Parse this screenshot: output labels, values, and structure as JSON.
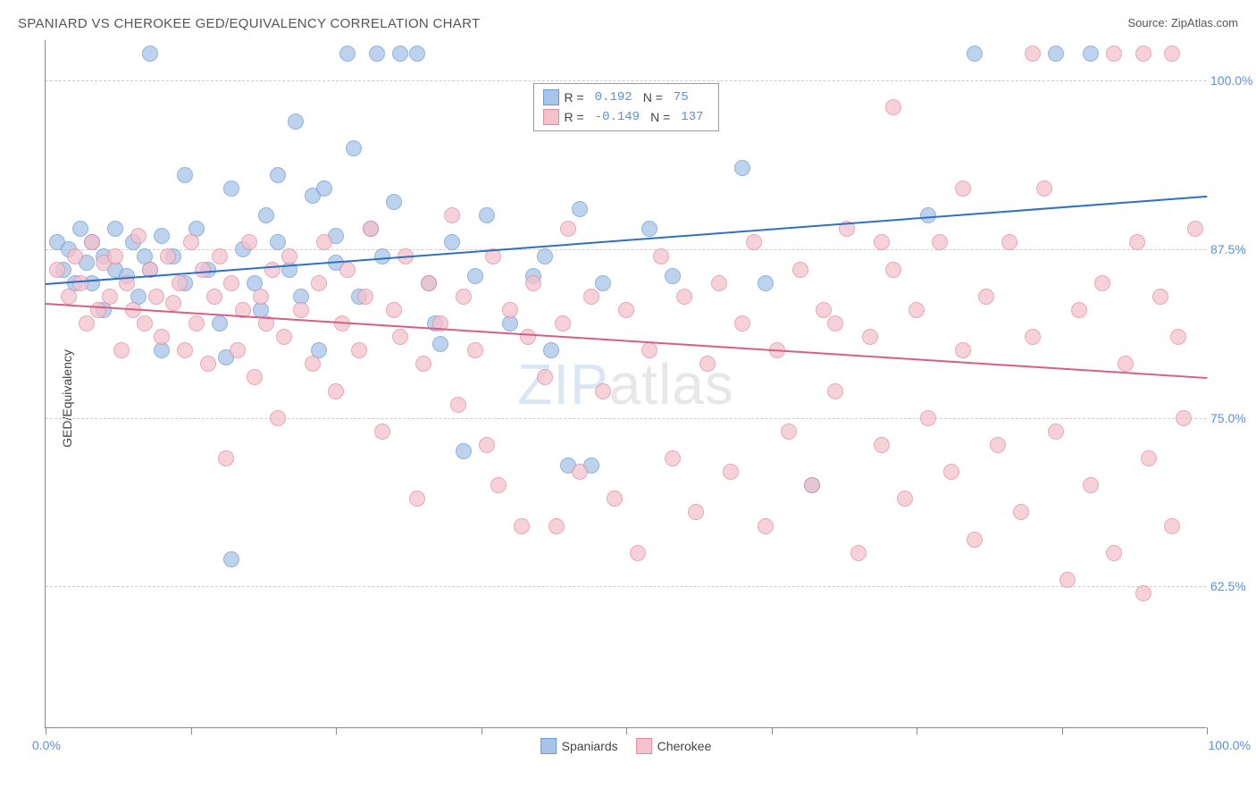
{
  "title": "SPANIARD VS CHEROKEE GED/EQUIVALENCY CORRELATION CHART",
  "source": "Source: ZipAtlas.com",
  "yaxis_label": "GED/Equivalency",
  "watermark_part1": "ZIP",
  "watermark_part2": "atlas",
  "xaxis": {
    "min": 0,
    "max": 100,
    "label_min": "0.0%",
    "label_max": "100.0%",
    "ticks": [
      0,
      12.5,
      25,
      37.5,
      50,
      62.5,
      75,
      87.5,
      100
    ]
  },
  "yaxis": {
    "min": 52,
    "max": 103,
    "gridlines": [
      62.5,
      75.0,
      87.5,
      100.0
    ],
    "labels": [
      "62.5%",
      "75.0%",
      "87.5%",
      "100.0%"
    ]
  },
  "series": [
    {
      "name": "Spaniards",
      "color_fill": "#a8c5e8",
      "color_stroke": "#6a9bd8",
      "line_color": "#2f6fc4",
      "r_value": "0.192",
      "n_value": "75",
      "trend": {
        "y_at_x0": 85.0,
        "y_at_x100": 91.5
      },
      "marker_radius": 9,
      "points": [
        [
          1,
          88
        ],
        [
          1.5,
          86
        ],
        [
          2,
          87.5
        ],
        [
          2.5,
          85
        ],
        [
          3,
          89
        ],
        [
          3.5,
          86.5
        ],
        [
          4,
          88
        ],
        [
          4,
          85
        ],
        [
          5,
          87
        ],
        [
          5,
          83
        ],
        [
          6,
          86
        ],
        [
          6,
          89
        ],
        [
          7,
          85.5
        ],
        [
          7.5,
          88
        ],
        [
          8,
          84
        ],
        [
          8.5,
          87
        ],
        [
          9,
          86
        ],
        [
          9,
          102
        ],
        [
          10,
          88.5
        ],
        [
          10,
          80
        ],
        [
          11,
          87
        ],
        [
          12,
          85
        ],
        [
          12,
          93
        ],
        [
          13,
          89
        ],
        [
          14,
          86
        ],
        [
          15,
          82
        ],
        [
          15.5,
          79.5
        ],
        [
          16,
          92
        ],
        [
          16,
          64.5
        ],
        [
          17,
          87.5
        ],
        [
          18,
          85
        ],
        [
          18.5,
          83
        ],
        [
          19,
          90
        ],
        [
          20,
          88
        ],
        [
          20,
          93
        ],
        [
          21,
          86
        ],
        [
          21.5,
          97
        ],
        [
          22,
          84
        ],
        [
          23,
          91.5
        ],
        [
          23.5,
          80
        ],
        [
          24,
          92
        ],
        [
          25,
          86.5
        ],
        [
          25,
          88.5
        ],
        [
          26,
          102
        ],
        [
          26.5,
          95
        ],
        [
          27,
          84
        ],
        [
          28,
          89
        ],
        [
          28.5,
          102
        ],
        [
          29,
          87
        ],
        [
          30,
          91
        ],
        [
          30.5,
          102
        ],
        [
          32,
          102
        ],
        [
          33,
          85
        ],
        [
          33.5,
          82
        ],
        [
          34,
          80.5
        ],
        [
          35,
          88
        ],
        [
          36,
          72.5
        ],
        [
          37,
          85.5
        ],
        [
          38,
          90
        ],
        [
          40,
          82
        ],
        [
          42,
          85.5
        ],
        [
          43,
          87
        ],
        [
          43.5,
          80
        ],
        [
          45,
          71.5
        ],
        [
          46,
          90.5
        ],
        [
          47,
          71.5
        ],
        [
          48,
          85
        ],
        [
          52,
          89
        ],
        [
          54,
          85.5
        ],
        [
          60,
          93.5
        ],
        [
          62,
          85
        ],
        [
          66,
          70
        ],
        [
          76,
          90
        ],
        [
          80,
          102
        ],
        [
          87,
          102
        ],
        [
          90,
          102
        ]
      ]
    },
    {
      "name": "Cherokee",
      "color_fill": "#f4c2cd",
      "color_stroke": "#e38ba0",
      "line_color": "#d65f82",
      "r_value": "-0.149",
      "n_value": "137",
      "trend": {
        "y_at_x0": 83.5,
        "y_at_x100": 78.0
      },
      "marker_radius": 9,
      "points": [
        [
          1,
          86
        ],
        [
          2,
          84
        ],
        [
          2.5,
          87
        ],
        [
          3,
          85
        ],
        [
          3.5,
          82
        ],
        [
          4,
          88
        ],
        [
          4.5,
          83
        ],
        [
          5,
          86.5
        ],
        [
          5.5,
          84
        ],
        [
          6,
          87
        ],
        [
          6.5,
          80
        ],
        [
          7,
          85
        ],
        [
          7.5,
          83
        ],
        [
          8,
          88.5
        ],
        [
          8.5,
          82
        ],
        [
          9,
          86
        ],
        [
          9.5,
          84
        ],
        [
          10,
          81
        ],
        [
          10.5,
          87
        ],
        [
          11,
          83.5
        ],
        [
          11.5,
          85
        ],
        [
          12,
          80
        ],
        [
          12.5,
          88
        ],
        [
          13,
          82
        ],
        [
          13.5,
          86
        ],
        [
          14,
          79
        ],
        [
          14.5,
          84
        ],
        [
          15,
          87
        ],
        [
          15.5,
          72
        ],
        [
          16,
          85
        ],
        [
          16.5,
          80
        ],
        [
          17,
          83
        ],
        [
          17.5,
          88
        ],
        [
          18,
          78
        ],
        [
          18.5,
          84
        ],
        [
          19,
          82
        ],
        [
          19.5,
          86
        ],
        [
          20,
          75
        ],
        [
          20.5,
          81
        ],
        [
          21,
          87
        ],
        [
          22,
          83
        ],
        [
          23,
          79
        ],
        [
          23.5,
          85
        ],
        [
          24,
          88
        ],
        [
          25,
          77
        ],
        [
          25.5,
          82
        ],
        [
          26,
          86
        ],
        [
          27,
          80
        ],
        [
          27.5,
          84
        ],
        [
          28,
          89
        ],
        [
          29,
          74
        ],
        [
          30,
          83
        ],
        [
          30.5,
          81
        ],
        [
          31,
          87
        ],
        [
          32,
          69
        ],
        [
          32.5,
          79
        ],
        [
          33,
          85
        ],
        [
          34,
          82
        ],
        [
          35,
          90
        ],
        [
          35.5,
          76
        ],
        [
          36,
          84
        ],
        [
          37,
          80
        ],
        [
          38,
          73
        ],
        [
          38.5,
          87
        ],
        [
          39,
          70
        ],
        [
          40,
          83
        ],
        [
          41,
          67
        ],
        [
          41.5,
          81
        ],
        [
          42,
          85
        ],
        [
          43,
          78
        ],
        [
          44,
          67
        ],
        [
          44.5,
          82
        ],
        [
          45,
          89
        ],
        [
          46,
          71
        ],
        [
          47,
          84
        ],
        [
          48,
          77
        ],
        [
          49,
          69
        ],
        [
          50,
          83
        ],
        [
          51,
          65
        ],
        [
          52,
          80
        ],
        [
          53,
          87
        ],
        [
          54,
          72
        ],
        [
          55,
          84
        ],
        [
          56,
          68
        ],
        [
          57,
          79
        ],
        [
          58,
          85
        ],
        [
          59,
          71
        ],
        [
          60,
          82
        ],
        [
          61,
          88
        ],
        [
          62,
          67
        ],
        [
          63,
          80
        ],
        [
          64,
          74
        ],
        [
          65,
          86
        ],
        [
          66,
          70
        ],
        [
          67,
          83
        ],
        [
          68,
          77
        ],
        [
          69,
          89
        ],
        [
          70,
          65
        ],
        [
          71,
          81
        ],
        [
          72,
          73
        ],
        [
          73,
          86
        ],
        [
          73,
          98
        ],
        [
          74,
          69
        ],
        [
          75,
          83
        ],
        [
          76,
          75
        ],
        [
          77,
          88
        ],
        [
          78,
          71
        ],
        [
          79,
          80
        ],
        [
          80,
          66
        ],
        [
          81,
          84
        ],
        [
          82,
          73
        ],
        [
          83,
          88
        ],
        [
          84,
          68
        ],
        [
          85,
          81
        ],
        [
          86,
          92
        ],
        [
          87,
          74
        ],
        [
          88,
          63
        ],
        [
          89,
          83
        ],
        [
          90,
          70
        ],
        [
          91,
          85
        ],
        [
          92,
          65
        ],
        [
          93,
          79
        ],
        [
          94,
          88
        ],
        [
          94.5,
          62
        ],
        [
          95,
          72
        ],
        [
          96,
          84
        ],
        [
          97,
          67
        ],
        [
          97.5,
          81
        ],
        [
          98,
          75
        ],
        [
          99,
          89
        ],
        [
          92,
          102
        ],
        [
          94.5,
          102
        ],
        [
          97,
          102
        ],
        [
          85,
          102
        ],
        [
          79,
          92
        ],
        [
          72,
          88
        ],
        [
          68,
          82
        ]
      ]
    }
  ],
  "legend_bottom": [
    {
      "label": "Spaniards",
      "fill": "#a8c5e8",
      "stroke": "#6a9bd8"
    },
    {
      "label": "Cherokee",
      "fill": "#f4c2cd",
      "stroke": "#e38ba0"
    }
  ]
}
